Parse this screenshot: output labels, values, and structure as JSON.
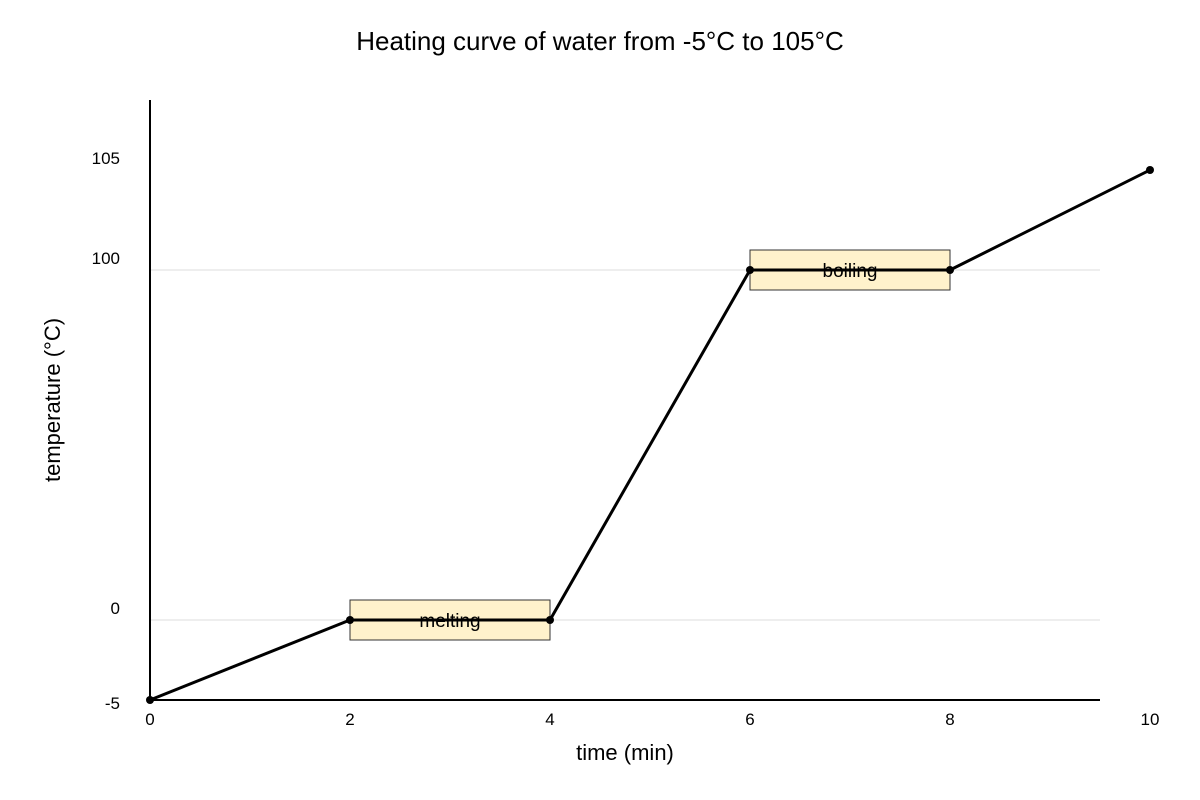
{
  "chart_data": {
    "type": "line",
    "title": "Heating curve of water from -5°C to 105°C",
    "xlabel": "time (min)",
    "ylabel": "temperature (°C)",
    "xlim": [
      0,
      10
    ],
    "x_ticks": [
      0,
      2,
      4,
      6,
      8,
      10
    ],
    "y_ticks": [
      -5,
      0,
      100,
      105
    ],
    "horizontal_gridlines_at": [
      0,
      100
    ],
    "series": [
      {
        "points": [
          {
            "x": 0,
            "y": -5
          },
          {
            "x": 2,
            "y": 0
          },
          {
            "x": 4,
            "y": 0
          },
          {
            "x": 6,
            "y": 100
          },
          {
            "x": 8,
            "y": 100
          },
          {
            "x": 10,
            "y": 105
          }
        ]
      }
    ],
    "annotations": [
      {
        "label": "melting",
        "x_start": 2,
        "x_end": 4,
        "y": 0
      },
      {
        "label": "boiling",
        "x_start": 6,
        "x_end": 8,
        "y": 100
      }
    ],
    "colors": {
      "line": "#000000",
      "gridline": "#dddddd",
      "annotation_fill": "#fff2cc",
      "annotation_border": "#333333"
    }
  }
}
